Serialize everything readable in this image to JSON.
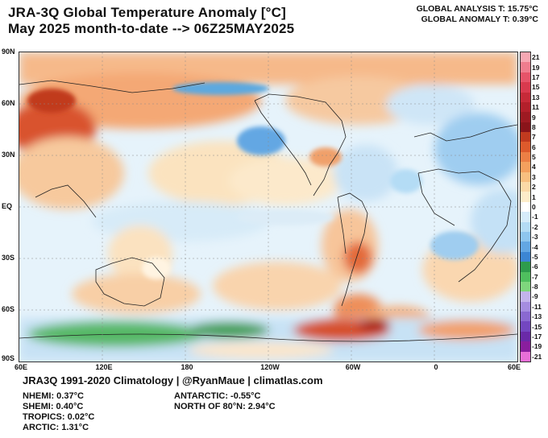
{
  "header": {
    "title_line1": "JRA-3Q Global Temperature Anomaly [°C]",
    "title_line2": "May 2025 month-to-date --> 06Z25MAY2025",
    "global_analysis": "GLOBAL ANALYSIS T: 15.75°C",
    "global_anomaly": "GLOBAL ANOMALY T: 0.39°C"
  },
  "map": {
    "lat_labels": [
      "90N",
      "60N",
      "30N",
      "EQ",
      "30S",
      "60S",
      "90S"
    ],
    "lon_labels": [
      "60E",
      "120E",
      "180",
      "120W",
      "60W",
      "0",
      "60E"
    ]
  },
  "colorbar": {
    "labels": [
      "21",
      "19",
      "17",
      "15",
      "13",
      "11",
      "9",
      "8",
      "7",
      "6",
      "5",
      "4",
      "3",
      "2",
      "1",
      "0",
      "-1",
      "-2",
      "-3",
      "-4",
      "-5",
      "-6",
      "-7",
      "-8",
      "-9",
      "-11",
      "-13",
      "-15",
      "-17",
      "-19",
      "-21"
    ],
    "colors": [
      "#f7a8b3",
      "#ef7d8e",
      "#e65469",
      "#d93a4e",
      "#c62a38",
      "#b3202b",
      "#9e1a22",
      "#8a141a",
      "#c13a1f",
      "#dd5a2c",
      "#ec7f45",
      "#f4a05e",
      "#f8bf80",
      "#fbd9a7",
      "#fdecc9",
      "#ffffff",
      "#d6ecfa",
      "#b4dcf5",
      "#8ec6ee",
      "#63a7e3",
      "#3c86d3",
      "#2e9c4c",
      "#4fbf5e",
      "#7fd67d",
      "#c3b4ec",
      "#a58de0",
      "#8a69d1",
      "#7347c0",
      "#6a2aa8",
      "#8a1e9e",
      "#e86fd8"
    ]
  },
  "footer": {
    "source": "JRA3Q 1991-2020 Climatology | @RyanMaue | climatlas.com",
    "nhemi": "NHEMI: 0.37°C",
    "shemi": "SHEMI: 0.40°C",
    "tropics": "TROPICS: 0.02°C",
    "arctic": "ARCTIC: 1.31°C",
    "antarctic": "ANTARCTIC: -0.55°C",
    "north80": "NORTH OF 80°N: 2.94°C"
  }
}
